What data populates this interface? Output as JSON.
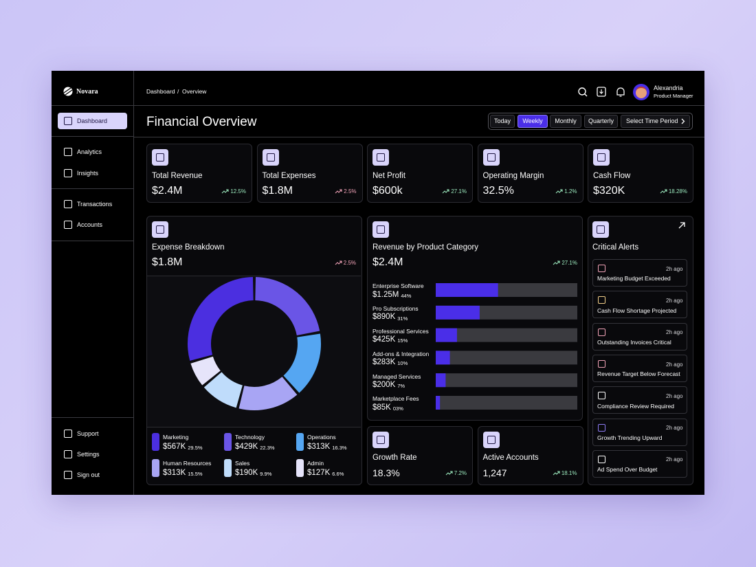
{
  "brand": "Novara",
  "breadcrumb": {
    "items": [
      "Dashboard",
      "Overview"
    ],
    "separator": "/"
  },
  "user": {
    "name": "Alexandria",
    "role": "Product Manager"
  },
  "nav": {
    "primary": [
      "Dashboard"
    ],
    "sections": [
      [
        "Analytics",
        "Insights"
      ],
      [
        "Transactions",
        "Accounts"
      ]
    ],
    "footer": [
      "Support",
      "Settings",
      "Sign out"
    ],
    "active": "Dashboard"
  },
  "page_title": "Financial Overview",
  "periods": {
    "options": [
      "Today",
      "Weekly",
      "Monthly",
      "Quarterly"
    ],
    "active": "Weekly",
    "picker": "Select Time Period"
  },
  "kpis": [
    {
      "title": "Total Revenue",
      "value": "$2.4M",
      "change": "12.5%",
      "tone": "positive"
    },
    {
      "title": "Total Expenses",
      "value": "$1.8M",
      "change": "2.5%",
      "tone": "negative"
    },
    {
      "title": "Net Profit",
      "value": "$600k",
      "change": "27.1%",
      "tone": "positive"
    },
    {
      "title": "Operating Margin",
      "value": "32.5%",
      "change": "1.2%",
      "tone": "positive"
    },
    {
      "title": "Cash Flow",
      "value": "$320K",
      "change": "18.28%",
      "tone": "positive"
    }
  ],
  "expense_breakdown": {
    "title": "Expense Breakdown",
    "total": "$1.8M",
    "change": "2.5%",
    "tone": "negative",
    "segments": [
      {
        "name": "Marketing",
        "amount": "$567K",
        "share": {
          "value": 29.5,
          "label": "29.5%"
        },
        "color": "#4b2fe0"
      },
      {
        "name": "Technology",
        "amount": "$429K",
        "share": {
          "value": 22.3,
          "label": "22.3%"
        },
        "color": "#6a55e6"
      },
      {
        "name": "Operations",
        "amount": "$313K",
        "share": {
          "value": 16.3,
          "label": "16.3%"
        },
        "color": "#55a6f2"
      },
      {
        "name": "Human Resources",
        "amount": "$313K",
        "share": {
          "value": 15.5,
          "label": "15.5%"
        },
        "color": "#a8a5f4"
      },
      {
        "name": "Sales",
        "amount": "$190K",
        "share": {
          "value": 9.9,
          "label": "9.9%"
        },
        "color": "#bfdcfb"
      },
      {
        "name": "Admin",
        "amount": "$127K",
        "share": {
          "value": 6.6,
          "label": "6.6%"
        },
        "color": "#e6e4fa"
      }
    ]
  },
  "revenue_by_category": {
    "title": "Revenue by Product Category",
    "total": "$2.4M",
    "change": "27.1%",
    "tone": "positive",
    "bar_color": "#4a2ee8",
    "items": [
      {
        "name": "Enterprise Software",
        "amount": "$1.25M",
        "share": {
          "value": 44,
          "label": "44%"
        }
      },
      {
        "name": "Pro Subscriptions",
        "amount": "$890K",
        "share": {
          "value": 31,
          "label": "31%"
        }
      },
      {
        "name": "Professional Services",
        "amount": "$425K",
        "share": {
          "value": 15,
          "label": "15%"
        }
      },
      {
        "name": "Add-ons & Integration",
        "amount": "$283K",
        "share": {
          "value": 10,
          "label": "10%"
        }
      },
      {
        "name": "Managed Services",
        "amount": "$200K",
        "share": {
          "value": 7,
          "label": "7%"
        }
      },
      {
        "name": "Marketplace Fees",
        "amount": "$85K",
        "share": {
          "value": 3,
          "label": "03%"
        }
      }
    ]
  },
  "small_cards": [
    {
      "title": "Growth Rate",
      "value": "18.3%",
      "change": "7.2%",
      "tone": "positive"
    },
    {
      "title": "Active Accounts",
      "value": "1,247",
      "change": "18.1%",
      "tone": "positive"
    }
  ],
  "alerts": {
    "title": "Critical Alerts",
    "items": [
      {
        "title": "Marketing Budget Exceeded",
        "time": "2h ago"
      },
      {
        "title": "Cash Flow Shortage Projected",
        "time": "2h ago"
      },
      {
        "title": "Outstanding Invoices Critical",
        "time": "2h ago"
      },
      {
        "title": "Revenue Target Below Forecast",
        "time": "2h ago"
      },
      {
        "title": "Compliance Review Required",
        "time": "2h ago"
      },
      {
        "title": "Growth Trending Upward",
        "time": "2h ago"
      },
      {
        "title": "Ad Spend Over Budget",
        "time": "2h ago"
      }
    ]
  }
}
